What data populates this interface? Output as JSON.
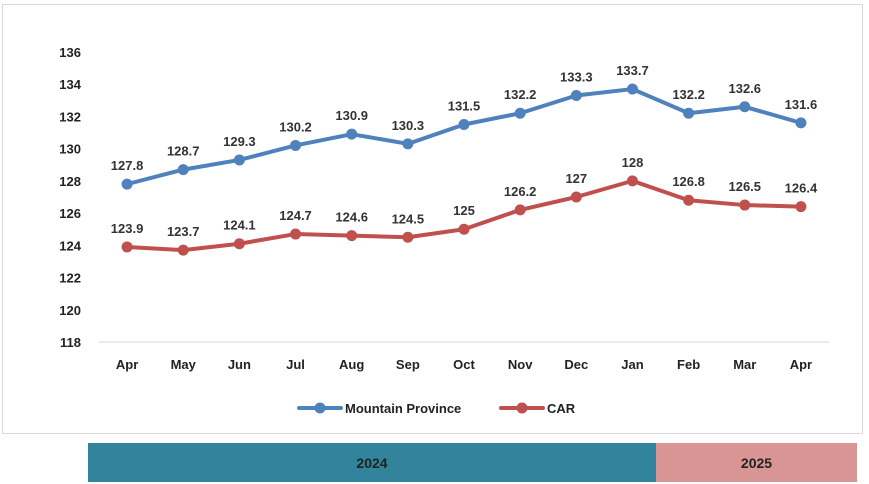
{
  "chart_data": {
    "type": "line",
    "categories": [
      "Apr",
      "May",
      "Jun",
      "Jul",
      "Aug",
      "Sep",
      "Oct",
      "Nov",
      "Dec",
      "Jan",
      "Feb",
      "Mar",
      "Apr"
    ],
    "series": [
      {
        "name": "Mountain Province",
        "color": "#4f81bd",
        "values": [
          127.8,
          128.7,
          129.3,
          130.2,
          130.9,
          130.3,
          131.5,
          132.2,
          133.3,
          133.7,
          132.2,
          132.6,
          131.6
        ]
      },
      {
        "name": "CAR",
        "color": "#c0504d",
        "values": [
          123.9,
          123.7,
          124.1,
          124.7,
          124.6,
          124.5,
          125,
          126.2,
          127,
          128,
          126.8,
          126.5,
          126.4
        ]
      }
    ],
    "ylim": [
      118,
      136
    ],
    "yticks": [
      118,
      120,
      122,
      124,
      126,
      128,
      130,
      132,
      134,
      136
    ],
    "grid": false,
    "legend": "bottom",
    "data_labels": true
  },
  "year_bands": [
    {
      "label": "2024",
      "color": "#31849b"
    },
    {
      "label": "2025",
      "color": "#d99594"
    }
  ]
}
